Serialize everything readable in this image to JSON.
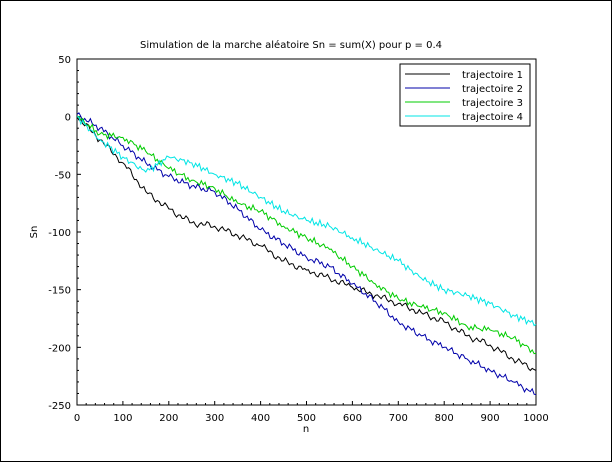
{
  "chart_data": {
    "type": "line",
    "title": "Simulation de la marche aléatoire Sn = sum(X) pour p = 0.4",
    "xlabel": "n",
    "ylabel": "Sn",
    "xlim": [
      0,
      1000
    ],
    "ylim": [
      -250,
      50
    ],
    "x_ticks": [
      0,
      100,
      200,
      300,
      400,
      500,
      600,
      700,
      800,
      900,
      1000
    ],
    "y_ticks": [
      50,
      0,
      -50,
      -100,
      -150,
      -200,
      -250
    ],
    "x_tick_labels": [
      "0",
      "100",
      "200",
      "300",
      "400",
      "500",
      "600",
      "700",
      "800",
      "900",
      "1000"
    ],
    "y_tick_labels": [
      "50",
      "0",
      "-50",
      "-100",
      "-150",
      "-200",
      "-250"
    ],
    "grid": false,
    "legend_position": "top-right",
    "series": [
      {
        "name": "trajectoire 1",
        "color": "#000000",
        "x": [
          0,
          50,
          100,
          150,
          200,
          250,
          300,
          350,
          400,
          450,
          500,
          550,
          600,
          650,
          700,
          750,
          800,
          850,
          900,
          950,
          1000
        ],
        "y": [
          0,
          -20,
          -40,
          -65,
          -80,
          -92,
          -95,
          -103,
          -112,
          -125,
          -133,
          -140,
          -148,
          -155,
          -162,
          -170,
          -178,
          -190,
          -198,
          -210,
          -220
        ]
      },
      {
        "name": "trajectoire 2",
        "color": "#0000aa",
        "x": [
          0,
          50,
          100,
          150,
          200,
          250,
          300,
          350,
          400,
          450,
          500,
          550,
          600,
          650,
          700,
          750,
          800,
          850,
          900,
          950,
          1000
        ],
        "y": [
          2,
          -10,
          -25,
          -40,
          -52,
          -60,
          -65,
          -80,
          -98,
          -110,
          -122,
          -130,
          -145,
          -160,
          -178,
          -190,
          -200,
          -210,
          -220,
          -230,
          -241
        ]
      },
      {
        "name": "trajectoire 3",
        "color": "#00cc00",
        "x": [
          0,
          50,
          100,
          150,
          200,
          250,
          300,
          350,
          400,
          450,
          500,
          550,
          600,
          650,
          700,
          750,
          800,
          850,
          900,
          950,
          1000
        ],
        "y": [
          0,
          -15,
          -18,
          -30,
          -45,
          -55,
          -62,
          -75,
          -82,
          -95,
          -105,
          -115,
          -130,
          -145,
          -158,
          -165,
          -170,
          -182,
          -185,
          -192,
          -205
        ]
      },
      {
        "name": "trajectoire 4",
        "color": "#00e5e5",
        "x": [
          0,
          50,
          100,
          150,
          200,
          250,
          300,
          350,
          400,
          450,
          500,
          550,
          600,
          650,
          700,
          750,
          800,
          850,
          900,
          950,
          1000
        ],
        "y": [
          0,
          -20,
          -35,
          -48,
          -35,
          -40,
          -50,
          -58,
          -70,
          -82,
          -90,
          -95,
          -105,
          -115,
          -125,
          -140,
          -150,
          -155,
          -162,
          -172,
          -180
        ]
      }
    ]
  }
}
